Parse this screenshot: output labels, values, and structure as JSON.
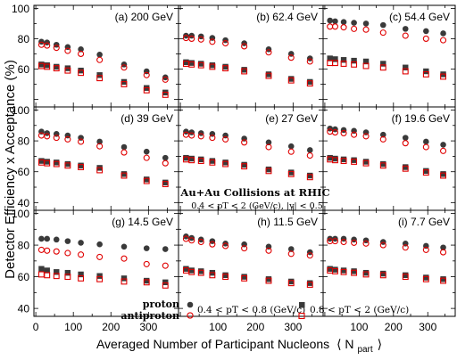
{
  "figure": {
    "ylabel": "Detector Efficiency x Acceptance (%)",
    "xlabel_main": "Averaged Number of Participant Nucleons",
    "xlabel_symbol": "⟨ N",
    "xlabel_sub": "part",
    "xlabel_close": "⟩",
    "collision_label": "Au+Au Collisions at RHIC",
    "cut_label": "0.4 < pT < 2 (GeV/c), |y| < 0.5",
    "legend": {
      "proton": "proton",
      "antiproton": "antiproton",
      "low_pt": "0.4 < pT < 0.8 (GeV/c)",
      "high_pt": "0.8 < pT < 2 (GeV/c)"
    },
    "y_ticks": [
      "40",
      "60",
      "80",
      "100"
    ],
    "x_ticks": [
      "0",
      "100",
      "200",
      "300"
    ],
    "colors": {
      "proton": "#3a3a3a",
      "antiproton": "#e00000"
    }
  },
  "chart_data": {
    "type": "scatter",
    "x_label": "Averaged Number of Participant Nucleons ⟨N_part⟩",
    "y_label": "Detector Efficiency x Acceptance (%)",
    "xlim": [
      -5,
      380
    ],
    "ylim": [
      35,
      102
    ],
    "grid": false,
    "panels": [
      {
        "label": "(a) 200 GeV",
        "x": [
          15,
          30,
          55,
          85,
          120,
          170,
          235,
          295,
          345
        ],
        "p_low": [
          78,
          77.5,
          76,
          74.5,
          73,
          69.5,
          63,
          58.5,
          54.5
        ],
        "pbar_low": [
          76,
          75.5,
          74,
          72,
          70,
          66,
          61,
          56,
          53
        ],
        "p_high": [
          63,
          62.5,
          61.5,
          60.5,
          59,
          56,
          51.5,
          47.5,
          44.5
        ],
        "pbar_high": [
          62,
          61.5,
          60.5,
          59,
          57.5,
          54,
          50,
          46,
          43
        ]
      },
      {
        "label": "(b) 62.4 GeV",
        "x": [
          15,
          30,
          55,
          85,
          120,
          170,
          235,
          295,
          345
        ],
        "p_low": [
          82,
          82,
          81.5,
          80.5,
          79,
          77,
          73,
          70,
          67
        ],
        "pbar_low": [
          80.5,
          80,
          79.5,
          78,
          77,
          75,
          71,
          67.5,
          65
        ],
        "p_high": [
          64.5,
          64,
          63.5,
          62.5,
          61.5,
          59.5,
          56.5,
          53.5,
          51.5
        ],
        "pbar_high": [
          63.5,
          63,
          62.5,
          61.5,
          60.5,
          58.5,
          55.5,
          52.5,
          50.5
        ]
      },
      {
        "label": "(c) 54.4 GeV",
        "x": [
          15,
          30,
          55,
          85,
          120,
          170,
          235,
          295,
          345
        ],
        "p_low": [
          92,
          91.5,
          91,
          90.5,
          90,
          89,
          86.5,
          85,
          83.5
        ],
        "pbar_low": [
          88,
          88,
          87.5,
          86.5,
          86,
          84,
          82,
          80,
          79
        ],
        "p_high": [
          67,
          66.5,
          66,
          65.5,
          65,
          63.5,
          61,
          58.5,
          56.5
        ],
        "pbar_high": [
          64,
          64,
          63.5,
          63,
          62,
          61,
          58.5,
          56.5,
          55
        ]
      },
      {
        "label": "(d) 39 GeV",
        "x": [
          15,
          30,
          55,
          85,
          120,
          170,
          235,
          295,
          345
        ],
        "p_low": [
          86,
          85,
          84.5,
          83.5,
          82,
          79.5,
          76,
          73,
          69
        ],
        "pbar_low": [
          83.5,
          83,
          82,
          81,
          79.5,
          76.5,
          72.5,
          69,
          65.5
        ],
        "p_high": [
          67,
          66.5,
          66,
          65,
          64,
          62.5,
          58.5,
          55,
          53
        ],
        "pbar_high": [
          66,
          65.5,
          65,
          64,
          63,
          61,
          57.5,
          54,
          52
        ]
      },
      {
        "label": "(e) 27 GeV",
        "x": [
          15,
          30,
          55,
          85,
          120,
          170,
          235,
          295,
          345
        ],
        "p_low": [
          86,
          85.5,
          85,
          84.5,
          83.5,
          81.5,
          79,
          76.5,
          74
        ],
        "pbar_low": [
          84,
          83.5,
          83,
          82,
          81,
          79,
          76,
          73,
          70.5
        ],
        "p_high": [
          69,
          68.5,
          68,
          67,
          66,
          64.5,
          61.5,
          59.5,
          57.5
        ],
        "pbar_high": [
          68,
          67.5,
          67,
          66,
          65,
          63.5,
          60.5,
          58.5,
          56.5
        ]
      },
      {
        "label": "(f) 19.6 GeV",
        "x": [
          15,
          30,
          55,
          85,
          120,
          170,
          235,
          295,
          345
        ],
        "p_low": [
          88,
          87.5,
          87,
          86.5,
          85.5,
          84,
          82,
          79.5,
          77.5
        ],
        "pbar_low": [
          86,
          85.5,
          85,
          84,
          83,
          81,
          78.5,
          76,
          73.5
        ],
        "p_high": [
          69,
          68.5,
          68,
          67.5,
          66.5,
          65,
          63,
          60.5,
          58.5
        ],
        "pbar_high": [
          68,
          67.5,
          67,
          66.5,
          65.5,
          64,
          62,
          59.5,
          57.5
        ]
      },
      {
        "label": "(g) 14.5 GeV",
        "x": [
          15,
          30,
          55,
          85,
          120,
          170,
          235,
          295,
          345
        ],
        "p_low": [
          84,
          84,
          83.5,
          82.5,
          81.5,
          80.5,
          79,
          78,
          77.5
        ],
        "pbar_low": [
          77,
          76.5,
          76,
          75,
          74,
          72.5,
          71.5,
          68,
          67
        ],
        "p_high": [
          65,
          64,
          63,
          62.5,
          61.5,
          60.5,
          59,
          57.5,
          56.5
        ],
        "pbar_high": [
          61.5,
          61,
          60.5,
          60,
          59,
          58.5,
          57,
          56.5,
          54.5
        ]
      },
      {
        "label": "(h) 11.5 GeV",
        "x": [
          15,
          30,
          55,
          85,
          120,
          170,
          235,
          295,
          345
        ],
        "p_low": [
          85.5,
          84.5,
          83.5,
          82.5,
          81,
          80.5,
          79,
          77.5,
          75.5
        ],
        "pbar_low": [
          84,
          83,
          82,
          80.5,
          79.5,
          78,
          76.5,
          74.5,
          73.5
        ],
        "p_high": [
          65,
          64,
          63.5,
          62.5,
          61,
          60,
          58.5,
          57,
          56
        ],
        "pbar_high": [
          64,
          63,
          62.5,
          61,
          60,
          59,
          57.5,
          56,
          55
        ]
      },
      {
        "label": "(i) 7.7 GeV",
        "x": [
          15,
          30,
          55,
          85,
          120,
          170,
          235,
          295,
          345
        ],
        "p_low": [
          84,
          84,
          84,
          83.5,
          83,
          82,
          81,
          79.5,
          78.5
        ],
        "pbar_low": [
          82.5,
          82.5,
          82,
          81.5,
          81,
          80,
          78.5,
          77,
          75.5
        ],
        "p_high": [
          65,
          64.5,
          64,
          63.5,
          62.5,
          62,
          61,
          59.5,
          58.5
        ],
        "pbar_high": [
          64,
          63.5,
          63,
          62.5,
          61.5,
          61,
          60,
          58.5,
          57.5
        ]
      }
    ]
  }
}
